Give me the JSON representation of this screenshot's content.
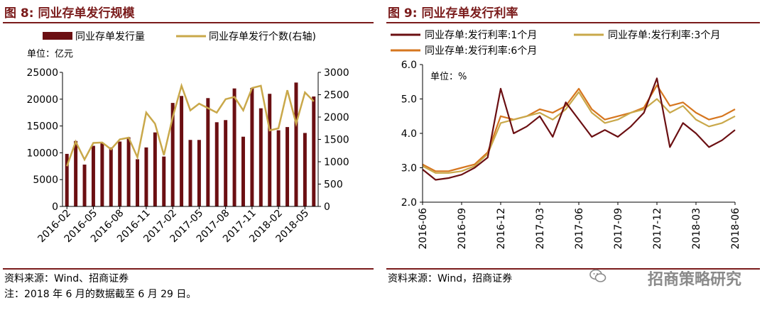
{
  "colors": {
    "dark_red": "#6b0f12",
    "gold": "#c9a84a",
    "orange": "#d6761f",
    "title_red": "#7a1b1b",
    "rule_red": "#7a1b1b"
  },
  "left": {
    "title": "图 8:  同业存单发行规模",
    "source": "资料来源：Wind、招商证券",
    "note": "注：2018 年 6 月的数据截至 6 月 29 日。"
  },
  "right": {
    "title": "图 9:  同业存单发行利率",
    "source": "资料来源：Wind，招商证券"
  },
  "watermark": {
    "text": "招商策略研究",
    "icon": "wechat-icon"
  },
  "chart_data": [
    {
      "type": "bar",
      "legend": [
        "同业存单发行量",
        "同业存单发行个数(右轴)"
      ],
      "unit_label": "单位：亿元",
      "categories": [
        "2016-02",
        "2016-03",
        "2016-04",
        "2016-05",
        "2016-06",
        "2016-07",
        "2016-08",
        "2016-09",
        "2016-10",
        "2016-11",
        "2016-12",
        "2017-01",
        "2017-02",
        "2017-03",
        "2017-04",
        "2017-05",
        "2017-06",
        "2017-07",
        "2017-08",
        "2017-09",
        "2017-10",
        "2017-11",
        "2017-12",
        "2018-01",
        "2018-02",
        "2018-03",
        "2018-04",
        "2018-05",
        "2018-06"
      ],
      "xtick_labels": [
        "2016-02",
        "2016-05",
        "2016-08",
        "2016-11",
        "2017-02",
        "2017-05",
        "2017-08",
        "2017-11",
        "2018-02",
        "2018-05"
      ],
      "series": [
        {
          "name": "同业存单发行量",
          "axis": "left",
          "kind": "bar",
          "values": [
            9800,
            12200,
            7800,
            11300,
            11800,
            11000,
            12100,
            12900,
            8800,
            11000,
            13800,
            9300,
            19300,
            20600,
            12400,
            12400,
            20200,
            15700,
            16100,
            22000,
            13000,
            22100,
            18300,
            21000,
            14200,
            14800,
            23100,
            13700,
            20500
          ]
        },
        {
          "name": "同业存单发行个数(右轴)",
          "axis": "right",
          "kind": "line",
          "values": [
            900,
            1450,
            1050,
            1420,
            1430,
            1280,
            1500,
            1540,
            1100,
            2100,
            1850,
            1150,
            2000,
            2700,
            2150,
            2300,
            2200,
            2100,
            2400,
            2450,
            2150,
            2650,
            2700,
            1700,
            1750,
            2600,
            1850,
            2550,
            2350
          ]
        }
      ],
      "ylim_left": [
        0,
        25000
      ],
      "yticks_left": [
        "0",
        "5000",
        "10000",
        "15000",
        "20000",
        "25000"
      ],
      "ylim_right": [
        0,
        3000
      ],
      "yticks_right": [
        "0",
        "500",
        "1000",
        "1500",
        "2000",
        "2500",
        "3000"
      ]
    },
    {
      "type": "line",
      "legend": [
        "同业存单:发行利率:1个月",
        "同业存单:发行利率:3个月",
        "同业存单:发行利率:6个月"
      ],
      "unit_label": "单位：%",
      "xtick_labels": [
        "2016-06",
        "2016-09",
        "2016-12",
        "2017-03",
        "2017-06",
        "2017-09",
        "2017-12",
        "2018-03",
        "2018-06"
      ],
      "x_months": [
        "2016-06",
        "2016-07",
        "2016-08",
        "2016-09",
        "2016-10",
        "2016-11",
        "2016-12",
        "2017-01",
        "2017-02",
        "2017-03",
        "2017-04",
        "2017-05",
        "2017-06",
        "2017-07",
        "2017-08",
        "2017-09",
        "2017-10",
        "2017-11",
        "2017-12",
        "2018-01",
        "2018-02",
        "2018-03",
        "2018-04",
        "2018-05",
        "2018-06"
      ],
      "series": [
        {
          "name": "同业存单:发行利率:1个月",
          "values": [
            2.95,
            2.65,
            2.7,
            2.8,
            3.0,
            3.3,
            5.3,
            4.0,
            4.2,
            4.5,
            3.9,
            4.9,
            4.4,
            3.9,
            4.1,
            3.9,
            4.2,
            4.6,
            5.6,
            3.6,
            4.3,
            4.0,
            3.6,
            3.8,
            4.1
          ]
        },
        {
          "name": "同业存单:发行利率:3个月",
          "values": [
            3.05,
            2.85,
            2.85,
            2.9,
            3.05,
            3.4,
            4.3,
            4.4,
            4.5,
            4.6,
            4.4,
            4.7,
            5.2,
            4.6,
            4.3,
            4.4,
            4.6,
            4.7,
            5.0,
            4.6,
            4.8,
            4.4,
            4.2,
            4.3,
            4.5
          ]
        },
        {
          "name": "同业存单:发行利率:6个月",
          "values": [
            3.1,
            2.9,
            2.9,
            3.0,
            3.1,
            3.45,
            4.5,
            4.4,
            4.5,
            4.7,
            4.6,
            4.8,
            5.3,
            4.7,
            4.4,
            4.5,
            4.6,
            4.75,
            5.4,
            4.8,
            4.9,
            4.6,
            4.4,
            4.5,
            4.7
          ]
        }
      ],
      "ylim": [
        2.0,
        6.0
      ],
      "yticks": [
        "2.0",
        "3.0",
        "4.0",
        "5.0",
        "6.0"
      ]
    }
  ]
}
